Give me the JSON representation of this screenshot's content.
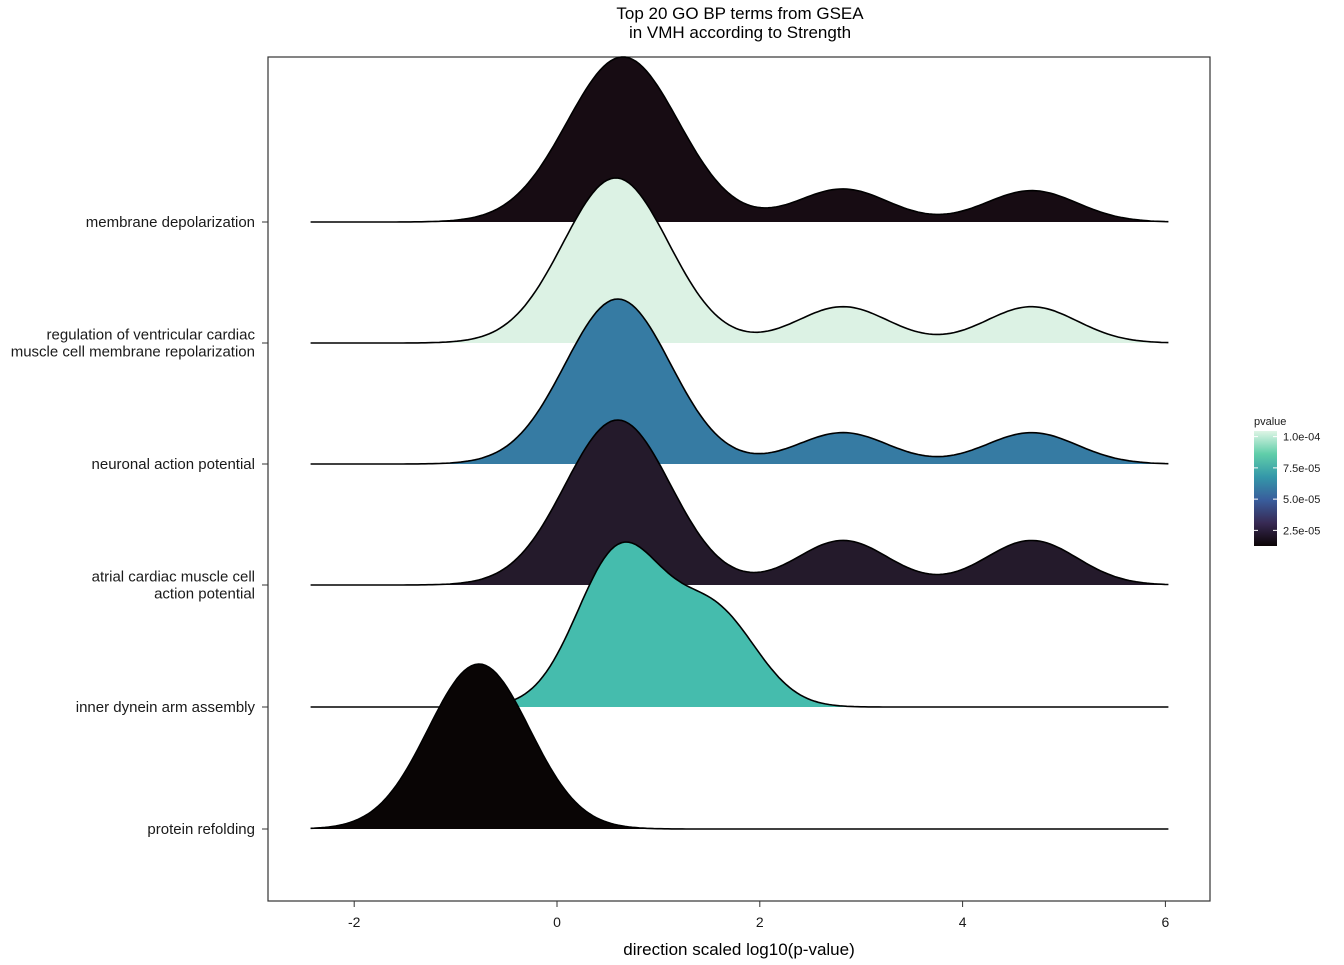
{
  "chart_data": {
    "type": "ridgeline",
    "title": [
      "Top 20 GO BP terms from GSEA",
      "in VMH according to Strength"
    ],
    "xlabel": "direction scaled log10(p-value)",
    "ylabel": "",
    "xlim": [
      -2.85,
      6.5
    ],
    "x_ticks": [
      "-2",
      "0",
      "2",
      "4",
      "6"
    ],
    "x_tick_values": [
      -2,
      0,
      2,
      4,
      6
    ],
    "grid": false,
    "legend": {
      "title": "pvalue",
      "position": "right",
      "labels": [
        "1.0e-04",
        "7.5e-05",
        "5.0e-05",
        "2.5e-05"
      ],
      "label_values": [
        0.0001,
        7.5e-05,
        5e-05,
        2.5e-05
      ],
      "range": [
        1.25e-05,
        0.0001045
      ],
      "gradient": [
        "#0b0405",
        "#382a54",
        "#395d9c",
        "#3497a9",
        "#60cea9",
        "#def5e5"
      ]
    },
    "series": [
      {
        "name": "membrane depolarization",
        "label_lines": [
          "membrane depolarization"
        ],
        "pvalue": 1.8e-05,
        "color": "#170c13",
        "x_range": [
          -2.43,
          6.03
        ],
        "components": [
          {
            "mu": 0.65,
            "sigma": 0.55,
            "w": 1.0
          },
          {
            "mu": 2.82,
            "sigma": 0.45,
            "w": 0.2
          },
          {
            "mu": 4.68,
            "sigma": 0.45,
            "w": 0.19
          }
        ]
      },
      {
        "name": "regulation of ventricular cardiac muscle cell membrane repolarization",
        "label_lines": [
          "regulation of ventricular cardiac",
          "muscle cell membrane repolarization"
        ],
        "pvalue": 0.0001,
        "color": "#dcf2e4",
        "x_range": [
          -2.43,
          6.03
        ],
        "components": [
          {
            "mu": 0.58,
            "sigma": 0.52,
            "w": 1.0
          },
          {
            "mu": 2.82,
            "sigma": 0.45,
            "w": 0.22
          },
          {
            "mu": 4.68,
            "sigma": 0.45,
            "w": 0.22
          }
        ]
      },
      {
        "name": "neuronal action potential",
        "label_lines": [
          "neuronal action potential"
        ],
        "pvalue": 5.7e-05,
        "color": "#367ba3",
        "x_range": [
          -2.43,
          6.03
        ],
        "components": [
          {
            "mu": 0.6,
            "sigma": 0.52,
            "w": 1.0
          },
          {
            "mu": 2.82,
            "sigma": 0.45,
            "w": 0.19
          },
          {
            "mu": 4.68,
            "sigma": 0.45,
            "w": 0.19
          }
        ]
      },
      {
        "name": "atrial cardiac muscle cell action potential",
        "label_lines": [
          "atrial cardiac muscle cell",
          "action potential"
        ],
        "pvalue": 2.2e-05,
        "color": "#241a2b",
        "x_range": [
          -2.43,
          6.03
        ],
        "components": [
          {
            "mu": 0.6,
            "sigma": 0.52,
            "w": 1.0
          },
          {
            "mu": 2.82,
            "sigma": 0.45,
            "w": 0.27
          },
          {
            "mu": 4.68,
            "sigma": 0.45,
            "w": 0.27
          }
        ]
      },
      {
        "name": "inner dynein arm assembly",
        "label_lines": [
          "inner dynein arm assembly"
        ],
        "pvalue": 8.3e-05,
        "color": "#45bcad",
        "x_range": [
          -2.43,
          6.03
        ],
        "components": [
          {
            "mu": 0.62,
            "sigma": 0.42,
            "w": 1.0
          },
          {
            "mu": 1.55,
            "sigma": 0.42,
            "w": 0.6
          }
        ]
      },
      {
        "name": "protein refolding",
        "label_lines": [
          "protein refolding"
        ],
        "pvalue": 1.25e-05,
        "color": "#090505",
        "x_range": [
          -2.43,
          6.03
        ],
        "components": [
          {
            "mu": -0.77,
            "sigma": 0.5,
            "w": 1.0
          }
        ]
      }
    ]
  }
}
